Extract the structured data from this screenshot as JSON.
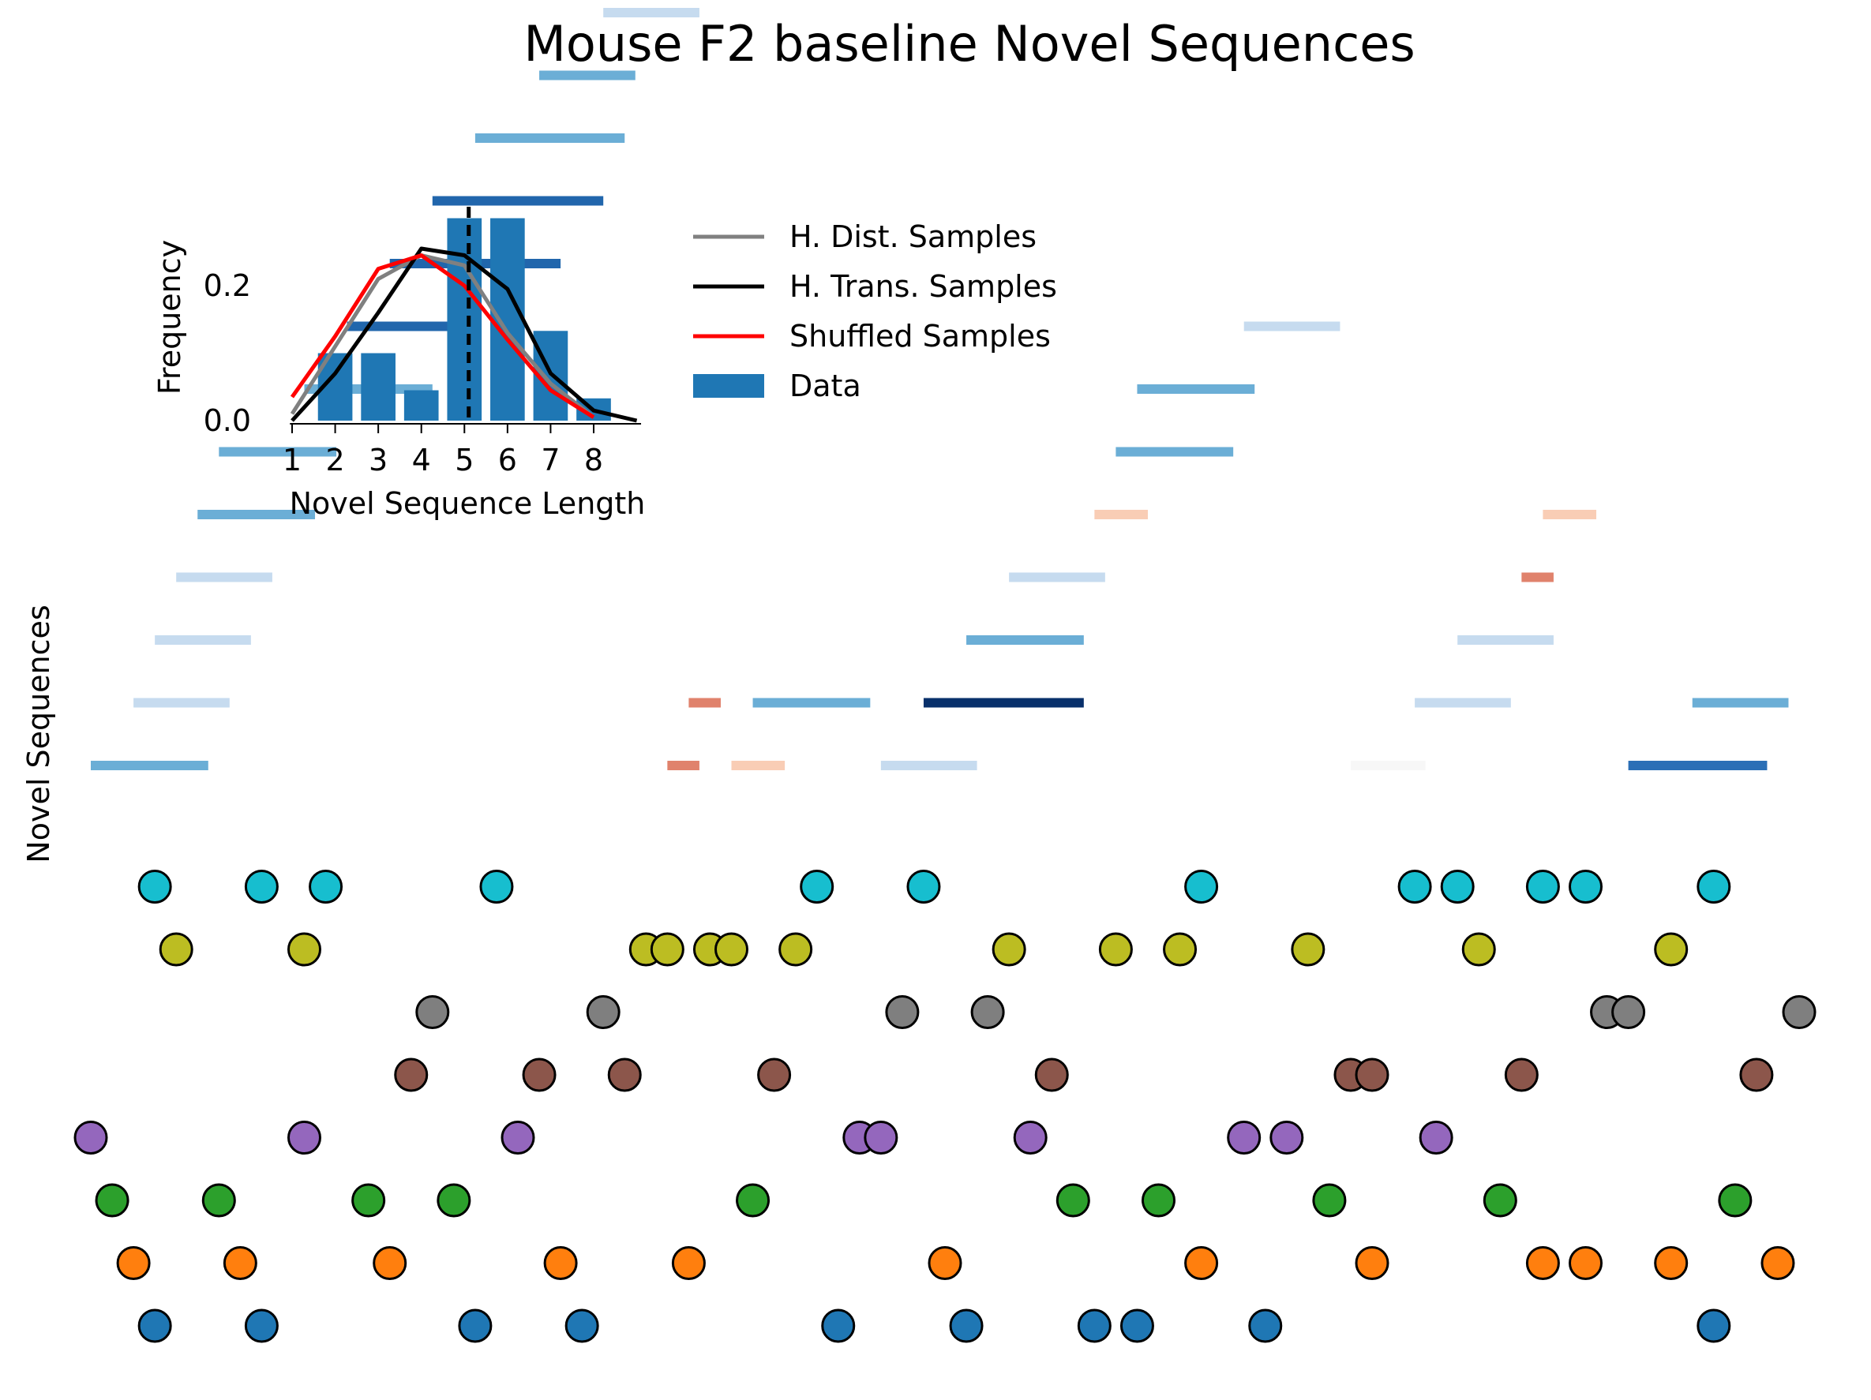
{
  "chart_data": [
    {
      "type": "scatter",
      "title": "Mouse F2 baseline Novel Sequences",
      "ylabel": "Novel Sequences",
      "grid": false,
      "x_range": [
        -1,
        81
      ],
      "dot_rows": [
        {
          "row": 1,
          "color": "#1f77b4",
          "x": [
            3,
            8,
            18,
            23,
            35,
            41,
            47,
            49,
            55,
            76
          ]
        },
        {
          "row": 2,
          "color": "#ff7f0e",
          "x": [
            2,
            7,
            14,
            22,
            28,
            40,
            52,
            60,
            68,
            70,
            74,
            79
          ]
        },
        {
          "row": 3,
          "color": "#2ca02c",
          "x": [
            1,
            6,
            13,
            17,
            31,
            46,
            50,
            58,
            66,
            77
          ]
        },
        {
          "row": 4,
          "color": "#9467bd",
          "x": [
            0,
            10,
            20,
            36,
            37,
            44,
            54,
            56,
            63
          ]
        },
        {
          "row": 5,
          "color": "#8c564b",
          "x": [
            15,
            21,
            25,
            32,
            45,
            59,
            60,
            67,
            78
          ]
        },
        {
          "row": 6,
          "color": "#7f7f7f",
          "x": [
            16,
            24,
            38,
            42,
            71,
            72,
            80
          ]
        },
        {
          "row": 7,
          "color": "#bcbd22",
          "x": [
            4,
            10,
            26,
            27,
            29,
            30,
            33,
            43,
            48,
            51,
            57,
            65,
            74
          ]
        },
        {
          "row": 8,
          "color": "#17becf",
          "x": [
            3,
            8,
            11,
            19,
            34,
            39,
            52,
            62,
            64,
            68,
            70,
            76
          ]
        }
      ],
      "sequences": [
        {
          "x0": 0,
          "x1": 5.5,
          "level": 1,
          "color": "#6baed6"
        },
        {
          "x0": 2,
          "x1": 6.5,
          "level": 2,
          "color": "#c6dbef"
        },
        {
          "x0": 3,
          "x1": 7.5,
          "level": 3,
          "color": "#c6dbef"
        },
        {
          "x0": 4,
          "x1": 8.5,
          "level": 4,
          "color": "#c6dbef"
        },
        {
          "x0": 5,
          "x1": 10.5,
          "level": 5,
          "color": "#6baed6"
        },
        {
          "x0": 6,
          "x1": 11.5,
          "level": 6,
          "color": "#6baed6"
        },
        {
          "x0": 10,
          "x1": 16,
          "level": 7,
          "color": "#6baed6"
        },
        {
          "x0": 12,
          "x1": 17,
          "level": 8,
          "color": "#2166ac"
        },
        {
          "x0": 14,
          "x1": 22,
          "level": 9,
          "color": "#2166ac"
        },
        {
          "x0": 16,
          "x1": 24,
          "level": 10,
          "color": "#2166ac"
        },
        {
          "x0": 18,
          "x1": 25,
          "level": 11,
          "color": "#6baed6"
        },
        {
          "x0": 21,
          "x1": 25.5,
          "level": 12,
          "color": "#6baed6"
        },
        {
          "x0": 24,
          "x1": 28.5,
          "level": 13,
          "color": "#c6dbef"
        },
        {
          "x0": 27,
          "x1": 28.5,
          "level": 1,
          "color": "#e0826c"
        },
        {
          "x0": 28,
          "x1": 29.5,
          "level": 2,
          "color": "#e0826c"
        },
        {
          "x0": 30,
          "x1": 32.5,
          "level": 1,
          "color": "#f9cdb5"
        },
        {
          "x0": 31,
          "x1": 36.5,
          "level": 2,
          "color": "#6baed6"
        },
        {
          "x0": 37,
          "x1": 41.5,
          "level": 1,
          "color": "#c6dbef"
        },
        {
          "x0": 39,
          "x1": 46.5,
          "level": 2,
          "color": "#08306b"
        },
        {
          "x0": 41,
          "x1": 46.5,
          "level": 3,
          "color": "#6baed6"
        },
        {
          "x0": 43,
          "x1": 47.5,
          "level": 4,
          "color": "#c6dbef"
        },
        {
          "x0": 47,
          "x1": 49.5,
          "level": 5,
          "color": "#f9cdb5"
        },
        {
          "x0": 48,
          "x1": 53.5,
          "level": 6,
          "color": "#6baed6"
        },
        {
          "x0": 49,
          "x1": 54.5,
          "level": 7,
          "color": "#6baed6"
        },
        {
          "x0": 54,
          "x1": 58.5,
          "level": 8,
          "color": "#c6dbef"
        },
        {
          "x0": 59,
          "x1": 62.5,
          "level": 1,
          "color": "#f7f7f7"
        },
        {
          "x0": 62,
          "x1": 66.5,
          "level": 2,
          "color": "#c6dbef"
        },
        {
          "x0": 64,
          "x1": 68.5,
          "level": 3,
          "color": "#c6dbef"
        },
        {
          "x0": 67,
          "x1": 68.5,
          "level": 4,
          "color": "#e0826c"
        },
        {
          "x0": 68,
          "x1": 70.5,
          "level": 5,
          "color": "#f9cdb5"
        },
        {
          "x0": 72,
          "x1": 78.5,
          "level": 1,
          "color": "#2b6fb6"
        },
        {
          "x0": 75,
          "x1": 79.5,
          "level": 2,
          "color": "#6baed6"
        }
      ]
    },
    {
      "type": "bar",
      "xlabel": "Novel Sequence Length",
      "ylabel": "Frequency",
      "x_ticks": [
        "1",
        "2",
        "3",
        "4",
        "5",
        "6",
        "7",
        "8"
      ],
      "y_ticks": [
        "0.0",
        "0.2"
      ],
      "ylim": [
        0,
        0.33
      ],
      "xlim": [
        0.95,
        9.1
      ],
      "categories": [
        1,
        2,
        3,
        4,
        5,
        6,
        7,
        8
      ],
      "values": [
        0.0,
        0.1,
        0.1,
        0.045,
        0.3,
        0.3,
        0.133,
        0.033
      ],
      "bar_color": "#1f77b4",
      "vline_x": 5.1,
      "series": [
        {
          "name": "H. Dist. Samples",
          "color": "#808080",
          "x": [
            1,
            2,
            3,
            4,
            5,
            6,
            7,
            8
          ],
          "y": [
            0.01,
            0.11,
            0.21,
            0.245,
            0.23,
            0.13,
            0.055,
            0.005
          ]
        },
        {
          "name": "H. Trans. Samples",
          "color": "#000000",
          "x": [
            1,
            2,
            3,
            4,
            5,
            6,
            7,
            8,
            9
          ],
          "y": [
            0.0,
            0.07,
            0.16,
            0.255,
            0.245,
            0.195,
            0.07,
            0.015,
            0.0
          ]
        },
        {
          "name": "Shuffled Samples",
          "color": "#ff0000",
          "x": [
            1,
            2,
            3,
            4,
            5,
            6,
            7,
            8
          ],
          "y": [
            0.035,
            0.125,
            0.225,
            0.245,
            0.2,
            0.12,
            0.045,
            0.005
          ]
        }
      ],
      "legend": {
        "placement": "right of inset",
        "entries": [
          "H. Dist. Samples",
          "H. Trans. Samples",
          "Shuffled Samples",
          "Data"
        ]
      }
    }
  ]
}
